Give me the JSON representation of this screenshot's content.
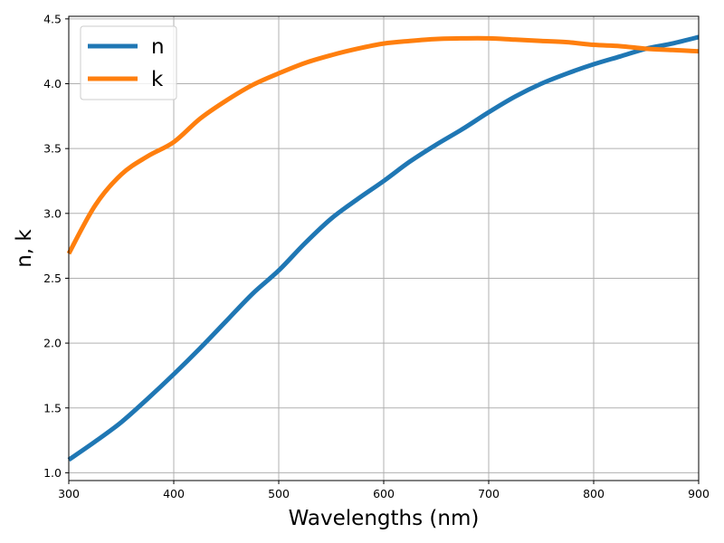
{
  "chart_data": {
    "type": "line",
    "title": "",
    "xlabel": "Wavelengths (nm)",
    "ylabel": "n, k",
    "xlim": [
      300,
      900
    ],
    "ylim": [
      0.94,
      4.52
    ],
    "xticks": [
      300,
      400,
      500,
      600,
      700,
      800,
      900
    ],
    "yticks": [
      1.0,
      1.5,
      2.0,
      2.5,
      3.0,
      3.5,
      4.0,
      4.5
    ],
    "grid": true,
    "legend_position": "top-left",
    "x": [
      300,
      325,
      350,
      375,
      400,
      425,
      450,
      475,
      500,
      525,
      550,
      575,
      600,
      625,
      650,
      675,
      700,
      725,
      750,
      775,
      800,
      825,
      850,
      875,
      900
    ],
    "series": [
      {
        "name": "n",
        "color": "#1f77b4",
        "values": [
          1.1,
          1.24,
          1.39,
          1.57,
          1.76,
          1.96,
          2.17,
          2.38,
          2.56,
          2.77,
          2.96,
          3.11,
          3.25,
          3.4,
          3.53,
          3.65,
          3.78,
          3.9,
          4.0,
          4.08,
          4.15,
          4.21,
          4.27,
          4.31,
          4.36
        ]
      },
      {
        "name": "k",
        "color": "#ff7f0e",
        "values": [
          2.69,
          3.06,
          3.3,
          3.44,
          3.55,
          3.73,
          3.87,
          3.99,
          4.08,
          4.16,
          4.22,
          4.27,
          4.31,
          4.33,
          4.345,
          4.35,
          4.35,
          4.34,
          4.33,
          4.32,
          4.3,
          4.29,
          4.27,
          4.26,
          4.25
        ]
      }
    ]
  }
}
